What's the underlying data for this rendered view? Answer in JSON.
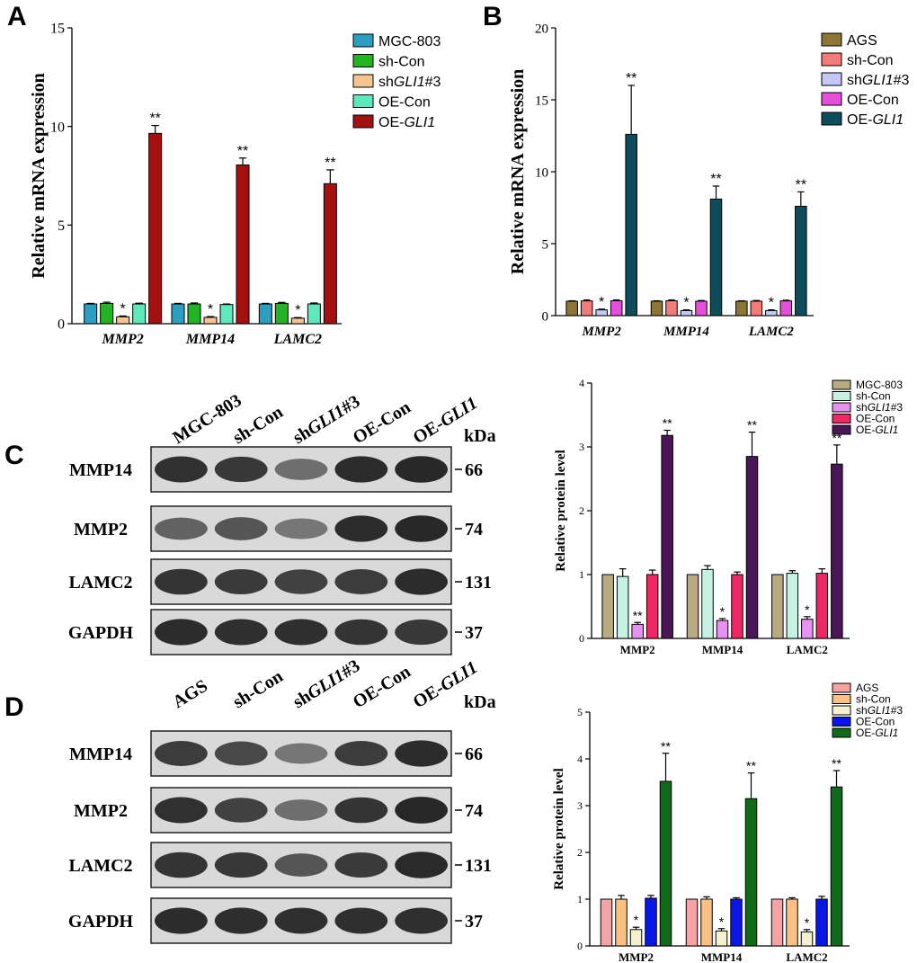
{
  "panels": [
    {
      "letter": "A",
      "chart": {
        "type": "bar",
        "ylabel": "Relative mRNA expression",
        "ylim": [
          0,
          15
        ],
        "yticks": [
          0,
          5,
          10,
          15
        ],
        "categories": [
          "MMP2",
          "MMP14",
          "LAMC2"
        ],
        "italic_categories": true,
        "series": [
          {
            "name": "MGC-803",
            "color": "#2a9fc0",
            "values": [
              1.0,
              1.0,
              1.0
            ],
            "errors": [
              0.03,
              0.03,
              0.03
            ],
            "marks": [
              "",
              "",
              ""
            ]
          },
          {
            "name": "sh-Con",
            "color": "#22b422",
            "values": [
              1.03,
              1.0,
              1.03
            ],
            "errors": [
              0.06,
              0.05,
              0.05
            ],
            "marks": [
              "",
              "",
              ""
            ]
          },
          {
            "name": "shGLI1#3",
            "color": "#f6c48e",
            "values": [
              0.35,
              0.32,
              0.28
            ],
            "errors": [
              0.04,
              0.04,
              0.03
            ],
            "marks": [
              "*",
              "*",
              "*"
            ]
          },
          {
            "name": "OE-Con",
            "color": "#5ee8bc",
            "values": [
              1.0,
              0.97,
              1.0
            ],
            "errors": [
              0.04,
              0.03,
              0.05
            ],
            "marks": [
              "",
              "",
              ""
            ]
          },
          {
            "name": "OE-GLI1",
            "color": "#a41010",
            "values": [
              9.65,
              8.05,
              7.1
            ],
            "errors": [
              0.4,
              0.35,
              0.7
            ],
            "marks": [
              "**",
              "**",
              "**"
            ]
          }
        ]
      }
    },
    {
      "letter": "B",
      "chart": {
        "type": "bar",
        "ylabel": "Relative mRNA expression",
        "ylim": [
          0,
          20
        ],
        "yticks": [
          0,
          5,
          10,
          15,
          20
        ],
        "categories": [
          "MMP2",
          "MMP14",
          "LAMC2"
        ],
        "italic_categories": true,
        "series": [
          {
            "name": "AGS",
            "color": "#8c7535",
            "values": [
              1.0,
              1.0,
              1.0
            ],
            "errors": [
              0.03,
              0.03,
              0.03
            ],
            "marks": [
              "",
              "",
              ""
            ]
          },
          {
            "name": "sh-Con",
            "color": "#f37b79",
            "values": [
              1.02,
              1.03,
              1.0
            ],
            "errors": [
              0.07,
              0.06,
              0.05
            ],
            "marks": [
              "",
              "",
              ""
            ]
          },
          {
            "name": "shGLI1#3",
            "color": "#c5c8f2",
            "values": [
              0.4,
              0.35,
              0.35
            ],
            "errors": [
              0.05,
              0.05,
              0.05
            ],
            "marks": [
              "*",
              "*",
              "*"
            ]
          },
          {
            "name": "OE-Con",
            "color": "#e64fd9",
            "values": [
              1.03,
              1.0,
              1.02
            ],
            "errors": [
              0.06,
              0.05,
              0.05
            ],
            "marks": [
              "",
              "",
              ""
            ]
          },
          {
            "name": "OE-GLI1",
            "color": "#0d4c5a",
            "values": [
              12.6,
              8.1,
              7.6
            ],
            "errors": [
              3.4,
              0.9,
              1.0
            ],
            "marks": [
              "**",
              "**",
              "**"
            ]
          }
        ]
      }
    },
    {
      "letter": "C",
      "blot": {
        "lanes": [
          "MGC-803",
          "sh-Con",
          "shGLI1#3",
          "OE-Con",
          "OE-GLI1"
        ],
        "kda_label": "kDa",
        "rows": [
          {
            "protein": "MMP14",
            "kda": "66",
            "intensity": [
              0.92,
              0.88,
              0.55,
              0.95,
              0.97
            ]
          },
          {
            "protein": "MMP2",
            "kda": "74",
            "intensity": [
              0.62,
              0.7,
              0.5,
              0.95,
              0.97
            ]
          },
          {
            "protein": "LAMC2",
            "kda": "131",
            "intensity": [
              0.9,
              0.86,
              0.82,
              0.85,
              0.95
            ]
          },
          {
            "protein": "GAPDH",
            "kda": "37",
            "intensity": [
              0.95,
              0.93,
              0.93,
              0.9,
              0.88
            ]
          }
        ]
      },
      "chart": {
        "type": "bar",
        "ylabel": "Relative protein level",
        "ylim": [
          0,
          4
        ],
        "yticks": [
          0,
          1,
          2,
          3,
          4
        ],
        "categories": [
          "MMP2",
          "MMP14",
          "LAMC2"
        ],
        "italic_categories": false,
        "series": [
          {
            "name": "MGC-803",
            "color": "#b9aa82",
            "values": [
              1.0,
              1.0,
              1.0
            ],
            "errors": [
              0.0,
              0.0,
              0.0
            ],
            "marks": [
              "",
              "",
              ""
            ]
          },
          {
            "name": "sh-Con",
            "color": "#c6f2e6",
            "values": [
              0.97,
              1.08,
              1.02
            ],
            "errors": [
              0.12,
              0.06,
              0.04
            ],
            "marks": [
              "",
              "",
              ""
            ]
          },
          {
            "name": "shGLI1#3",
            "color": "#e592f0",
            "values": [
              0.22,
              0.28,
              0.3
            ],
            "errors": [
              0.03,
              0.03,
              0.04
            ],
            "marks": [
              "**",
              "*",
              "*"
            ]
          },
          {
            "name": "OE-Con",
            "color": "#ee2864",
            "values": [
              1.0,
              1.0,
              1.02
            ],
            "errors": [
              0.07,
              0.04,
              0.07
            ],
            "marks": [
              "",
              "",
              ""
            ]
          },
          {
            "name": "OE-GLI1",
            "color": "#4a1658",
            "values": [
              3.18,
              2.85,
              2.73
            ],
            "errors": [
              0.08,
              0.38,
              0.3
            ],
            "marks": [
              "**",
              "**",
              "**"
            ]
          }
        ]
      }
    },
    {
      "letter": "D",
      "blot": {
        "lanes": [
          "AGS",
          "sh-Con",
          "shGLI1#3",
          "OE-Con",
          "OE-GLI1"
        ],
        "kda_label": "kDa",
        "rows": [
          {
            "protein": "MMP14",
            "kda": "66",
            "intensity": [
              0.85,
              0.78,
              0.5,
              0.85,
              0.95
            ]
          },
          {
            "protein": "MMP2",
            "kda": "74",
            "intensity": [
              0.92,
              0.82,
              0.55,
              0.9,
              0.98
            ]
          },
          {
            "protein": "LAMC2",
            "kda": "131",
            "intensity": [
              0.9,
              0.88,
              0.7,
              0.86,
              0.96
            ]
          },
          {
            "protein": "GAPDH",
            "kda": "37",
            "intensity": [
              0.95,
              0.94,
              0.93,
              0.93,
              0.93
            ]
          }
        ]
      },
      "chart": {
        "type": "bar",
        "ylabel": "Relative protein level",
        "ylim": [
          0,
          5
        ],
        "yticks": [
          0,
          1,
          2,
          3,
          4,
          5
        ],
        "categories": [
          "MMP2",
          "MMP14",
          "LAMC2"
        ],
        "italic_categories": false,
        "series": [
          {
            "name": "AGS",
            "color": "#f7a3a6",
            "values": [
              1.0,
              1.0,
              1.0
            ],
            "errors": [
              0.0,
              0.0,
              0.0
            ],
            "marks": [
              "",
              "",
              ""
            ]
          },
          {
            "name": "sh-Con",
            "color": "#f8c082",
            "values": [
              1.0,
              1.0,
              1.0
            ],
            "errors": [
              0.08,
              0.05,
              0.03
            ],
            "marks": [
              "",
              "",
              ""
            ]
          },
          {
            "name": "shGLI1#3",
            "color": "#f4f0d0",
            "values": [
              0.35,
              0.32,
              0.3
            ],
            "errors": [
              0.05,
              0.05,
              0.05
            ],
            "marks": [
              "*",
              "*",
              "*"
            ]
          },
          {
            "name": "OE-Con",
            "color": "#0a16e8",
            "values": [
              1.02,
              1.0,
              1.0
            ],
            "errors": [
              0.06,
              0.03,
              0.06
            ],
            "marks": [
              "",
              "",
              ""
            ]
          },
          {
            "name": "OE-GLI1",
            "color": "#0f6a1a",
            "values": [
              3.52,
              3.15,
              3.4
            ],
            "errors": [
              0.6,
              0.55,
              0.35
            ],
            "marks": [
              "**",
              "**",
              "**"
            ]
          }
        ]
      }
    }
  ]
}
